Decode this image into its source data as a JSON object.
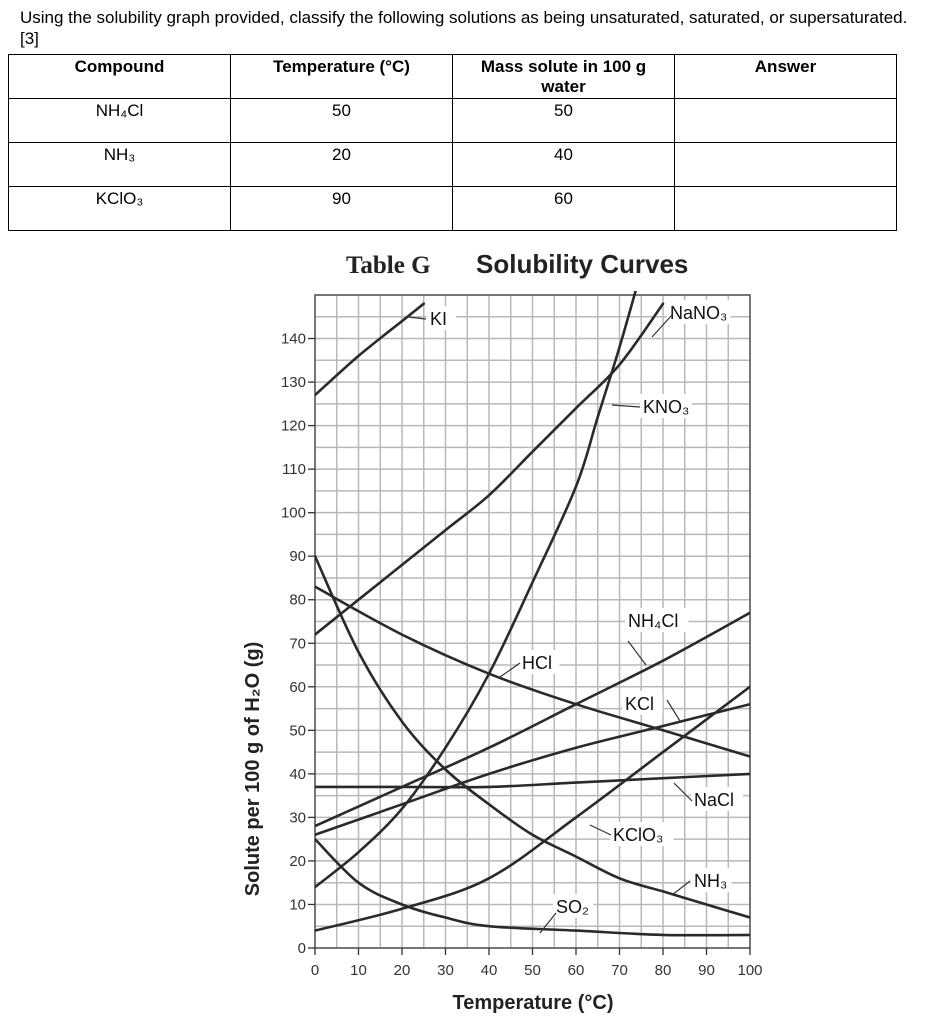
{
  "question": "Using the solubility graph provided, classify the following solutions as being unsaturated, saturated, or supersaturated. [3]",
  "table": {
    "headers": [
      "Compound",
      "Temperature (°C)",
      "Mass solute in 100 g water",
      "Answer"
    ],
    "rows": [
      {
        "compound": "NH₄Cl",
        "temperature": "50",
        "mass": "50",
        "answer": ""
      },
      {
        "compound": "NH₃",
        "temperature": "20",
        "mass": "40",
        "answer": ""
      },
      {
        "compound": "KClO₃",
        "temperature": "90",
        "mass": "60",
        "answer": ""
      }
    ]
  },
  "chart_data": {
    "type": "line",
    "title_prefix": "Table G",
    "title": "Solubility Curves",
    "xlabel": "Temperature (°C)",
    "ylabel": "Solute per 100 g of H₂O (g)",
    "xlim": [
      0,
      100
    ],
    "ylim": [
      0,
      150
    ],
    "xticks": [
      0,
      10,
      20,
      30,
      40,
      50,
      60,
      70,
      80,
      90,
      100
    ],
    "yticks": [
      0,
      10,
      20,
      30,
      40,
      50,
      60,
      70,
      80,
      90,
      100,
      110,
      120,
      130,
      140
    ],
    "grid": true,
    "series": [
      {
        "name": "KI",
        "label": "KI",
        "points": [
          [
            0,
            127
          ],
          [
            10,
            136
          ],
          [
            20,
            144
          ],
          [
            25,
            148
          ]
        ]
      },
      {
        "name": "NaNO3",
        "label": "NaNO₃",
        "points": [
          [
            0,
            72
          ],
          [
            10,
            80
          ],
          [
            20,
            88
          ],
          [
            30,
            96
          ],
          [
            40,
            104
          ],
          [
            50,
            114
          ],
          [
            60,
            124
          ],
          [
            70,
            134
          ],
          [
            80,
            148
          ]
        ]
      },
      {
        "name": "KNO3",
        "label": "KNO₃",
        "points": [
          [
            0,
            14
          ],
          [
            10,
            22
          ],
          [
            20,
            32
          ],
          [
            30,
            46
          ],
          [
            40,
            63
          ],
          [
            50,
            84
          ],
          [
            60,
            106
          ],
          [
            65,
            122
          ],
          [
            70,
            138
          ],
          [
            74,
            152
          ]
        ]
      },
      {
        "name": "NH4Cl",
        "label": "NH₄Cl",
        "points": [
          [
            0,
            28
          ],
          [
            20,
            37
          ],
          [
            40,
            46
          ],
          [
            60,
            56
          ],
          [
            80,
            66
          ],
          [
            100,
            77
          ]
        ]
      },
      {
        "name": "KCl",
        "label": "KCl",
        "points": [
          [
            0,
            26
          ],
          [
            20,
            33
          ],
          [
            40,
            40
          ],
          [
            60,
            46
          ],
          [
            80,
            51
          ],
          [
            100,
            56
          ]
        ]
      },
      {
        "name": "HCl",
        "label": "HCl",
        "points": [
          [
            0,
            83
          ],
          [
            20,
            72
          ],
          [
            40,
            63
          ],
          [
            60,
            56
          ],
          [
            80,
            50
          ],
          [
            100,
            44
          ]
        ]
      },
      {
        "name": "NaCl",
        "label": "NaCl",
        "points": [
          [
            0,
            37
          ],
          [
            20,
            37
          ],
          [
            40,
            37
          ],
          [
            60,
            38
          ],
          [
            80,
            39
          ],
          [
            100,
            40
          ]
        ]
      },
      {
        "name": "KClO3",
        "label": "KClO₃",
        "points": [
          [
            0,
            4
          ],
          [
            20,
            9
          ],
          [
            40,
            16
          ],
          [
            60,
            30
          ],
          [
            80,
            45
          ],
          [
            100,
            60
          ]
        ]
      },
      {
        "name": "NH3",
        "label": "NH₃",
        "points": [
          [
            0,
            90
          ],
          [
            10,
            68
          ],
          [
            20,
            52
          ],
          [
            30,
            41
          ],
          [
            40,
            33
          ],
          [
            50,
            26
          ],
          [
            60,
            21
          ],
          [
            70,
            16
          ],
          [
            80,
            13
          ],
          [
            90,
            10
          ],
          [
            100,
            7
          ]
        ]
      },
      {
        "name": "SO2",
        "label": "SO₂",
        "points": [
          [
            0,
            25
          ],
          [
            10,
            15
          ],
          [
            20,
            10
          ],
          [
            30,
            7
          ],
          [
            40,
            5
          ],
          [
            60,
            4
          ],
          [
            80,
            3
          ],
          [
            100,
            3
          ]
        ]
      }
    ]
  }
}
